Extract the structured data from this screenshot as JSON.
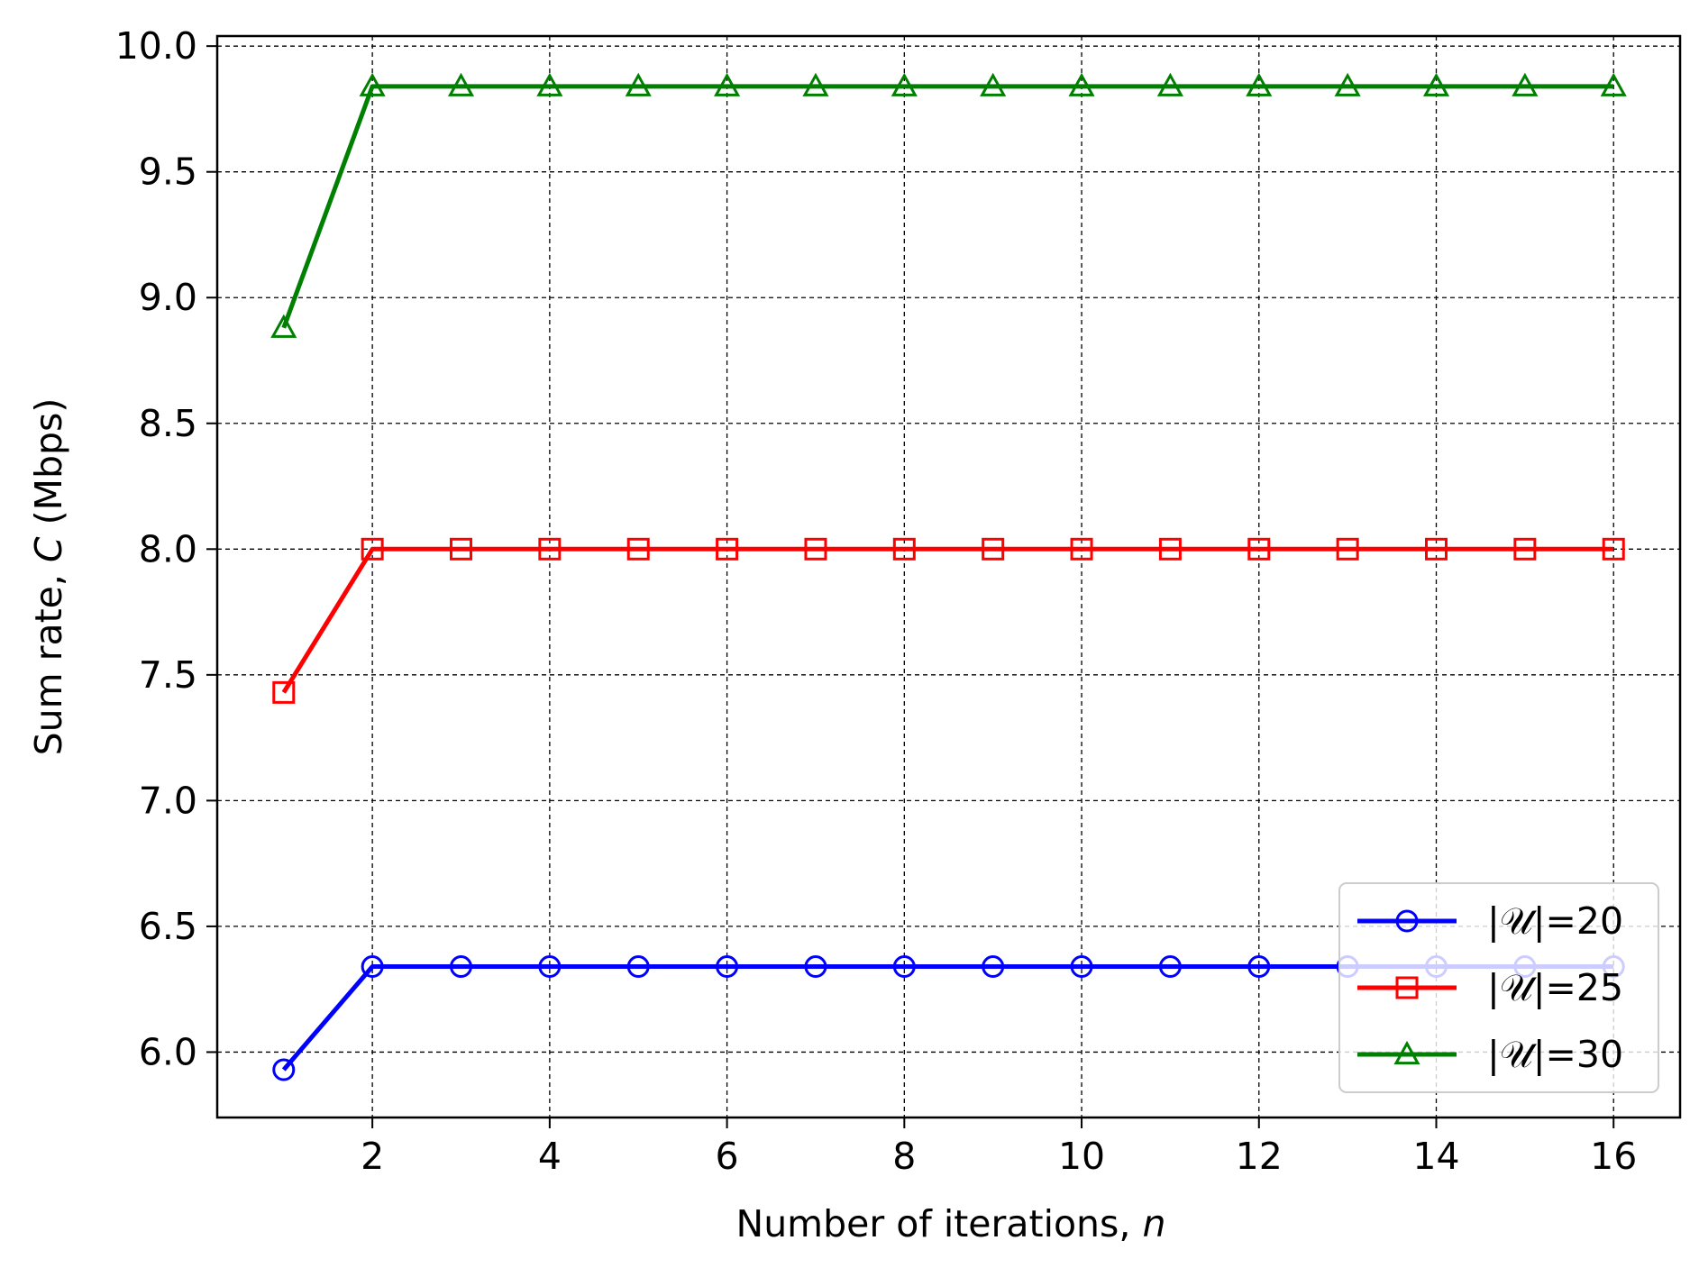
{
  "chart_data": {
    "type": "line",
    "xlabel": "Number of iterations, ",
    "xlabel_var": "n",
    "ylabel": "Sum rate, ",
    "ylabel_var": "C",
    "ylabel_unit": " (Mbps)",
    "xlim": [
      0.25,
      16.75
    ],
    "ylim": [
      5.74,
      10.04
    ],
    "xticks": [
      2,
      4,
      6,
      8,
      10,
      12,
      14,
      16
    ],
    "yticks": [
      6.0,
      6.5,
      7.0,
      7.5,
      8.0,
      8.5,
      9.0,
      9.5,
      10.0
    ],
    "xtick_labels": [
      "2",
      "4",
      "6",
      "8",
      "10",
      "12",
      "14",
      "16"
    ],
    "ytick_labels": [
      "6.0",
      "6.5",
      "7.0",
      "7.5",
      "8.0",
      "8.5",
      "9.0",
      "9.5",
      "10.0"
    ],
    "grid": true,
    "legend_position": "lower-right",
    "x": [
      1,
      2,
      3,
      4,
      5,
      6,
      7,
      8,
      9,
      10,
      11,
      12,
      13,
      14,
      15,
      16
    ],
    "series": [
      {
        "name": "|𝒰|=20",
        "marker": "circle",
        "color": "#0000ff",
        "values": [
          5.93,
          6.34,
          6.34,
          6.34,
          6.34,
          6.34,
          6.34,
          6.34,
          6.34,
          6.34,
          6.34,
          6.34,
          6.34,
          6.34,
          6.34,
          6.34
        ]
      },
      {
        "name": "|𝒰|=25",
        "marker": "square",
        "color": "#ff0000",
        "values": [
          7.43,
          8.0,
          8.0,
          8.0,
          8.0,
          8.0,
          8.0,
          8.0,
          8.0,
          8.0,
          8.0,
          8.0,
          8.0,
          8.0,
          8.0,
          8.0
        ]
      },
      {
        "name": "|𝒰|=30",
        "marker": "triangle",
        "color": "#008000",
        "values": [
          8.88,
          9.84,
          9.84,
          9.84,
          9.84,
          9.84,
          9.84,
          9.84,
          9.84,
          9.84,
          9.84,
          9.84,
          9.84,
          9.84,
          9.84,
          9.84
        ]
      }
    ]
  }
}
